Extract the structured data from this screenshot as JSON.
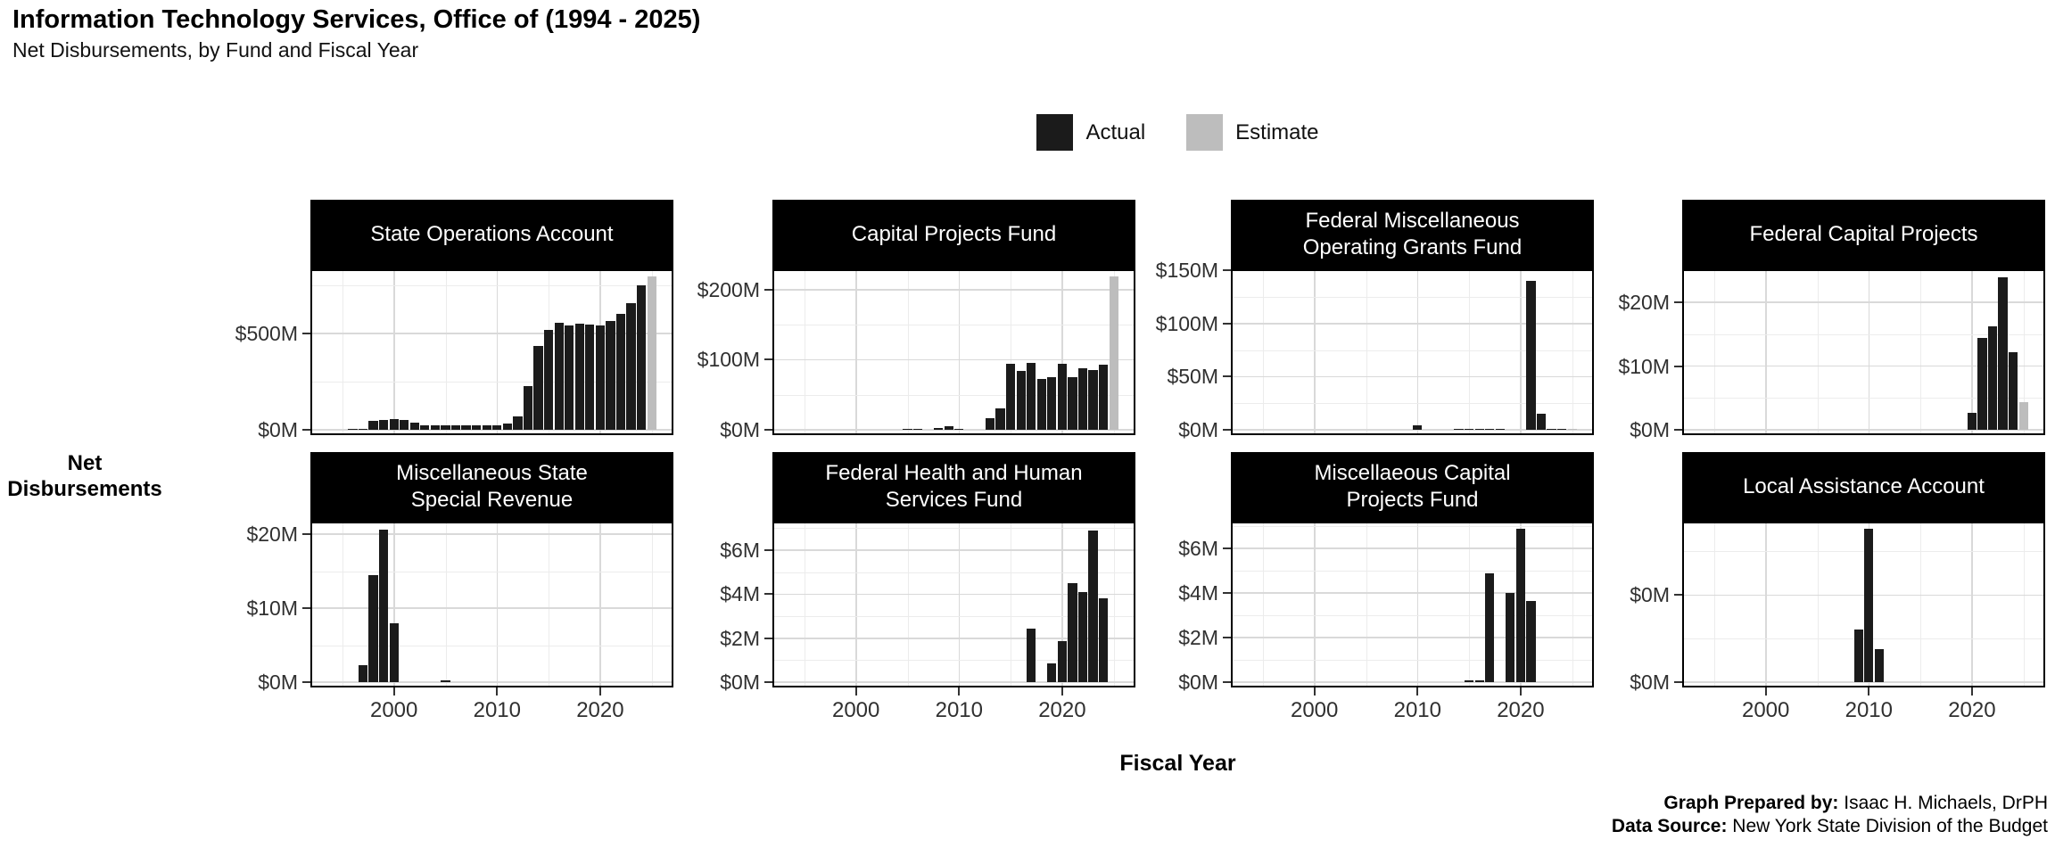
{
  "header": {
    "title": "Information Technology Services, Office of (1994 - 2025)",
    "subtitle": "Net Disbursements, by Fund and Fiscal Year"
  },
  "legend": {
    "items": [
      {
        "label": "Actual",
        "color": "#1b1b1b"
      },
      {
        "label": "Estimate",
        "color": "#bdbdbd"
      }
    ]
  },
  "footer": {
    "lines": [
      {
        "label": "Graph Prepared by:",
        "text": " Isaac H. Michaels, DrPH"
      },
      {
        "label": "Data Source:",
        "text": " New York State Division of the Budget"
      }
    ]
  },
  "chart_data": {
    "type": "bar",
    "title": "Information Technology Services, Office of (1994 - 2025)",
    "subtitle": "Net Disbursements, by Fund and Fiscal Year",
    "xlabel": "Fiscal Year",
    "ylabel": "Net Disbursements",
    "unit": "$M",
    "legend_position": "top-center",
    "grid": true,
    "x_domain": [
      1991.9,
      2027.1
    ],
    "bar_width_years": 0.9,
    "x_ticks": [
      2000,
      2010,
      2020
    ],
    "x_major": [
      2000,
      2010,
      2020
    ],
    "x_minor": [
      1995,
      2005,
      2015,
      2025
    ],
    "series_colors": {
      "actual": "#1b1b1b",
      "estimate": "#bdbdbd"
    },
    "facets": [
      {
        "title": "State Operations Account",
        "ymax": 833,
        "major_ticks": [
          {
            "value": 0,
            "label": "$0M"
          },
          {
            "value": 500,
            "label": "$500M"
          }
        ],
        "minor_ticks": [
          250,
          750
        ],
        "bars": [
          {
            "year": 1996,
            "value": 2,
            "kind": "actual"
          },
          {
            "year": 1997,
            "value": 6,
            "kind": "actual"
          },
          {
            "year": 1998,
            "value": 48,
            "kind": "actual"
          },
          {
            "year": 1999,
            "value": 50,
            "kind": "actual"
          },
          {
            "year": 2000,
            "value": 58,
            "kind": "actual"
          },
          {
            "year": 2001,
            "value": 52,
            "kind": "actual"
          },
          {
            "year": 2002,
            "value": 38,
            "kind": "actual"
          },
          {
            "year": 2003,
            "value": 24,
            "kind": "actual"
          },
          {
            "year": 2004,
            "value": 22,
            "kind": "actual"
          },
          {
            "year": 2005,
            "value": 23,
            "kind": "actual"
          },
          {
            "year": 2006,
            "value": 24,
            "kind": "actual"
          },
          {
            "year": 2007,
            "value": 24,
            "kind": "actual"
          },
          {
            "year": 2008,
            "value": 24,
            "kind": "actual"
          },
          {
            "year": 2009,
            "value": 24,
            "kind": "actual"
          },
          {
            "year": 2010,
            "value": 22,
            "kind": "actual"
          },
          {
            "year": 2011,
            "value": 33,
            "kind": "actual"
          },
          {
            "year": 2012,
            "value": 70,
            "kind": "actual"
          },
          {
            "year": 2013,
            "value": 227,
            "kind": "actual"
          },
          {
            "year": 2014,
            "value": 435,
            "kind": "actual"
          },
          {
            "year": 2015,
            "value": 519,
            "kind": "actual"
          },
          {
            "year": 2016,
            "value": 556,
            "kind": "actual"
          },
          {
            "year": 2017,
            "value": 542,
            "kind": "actual"
          },
          {
            "year": 2018,
            "value": 551,
            "kind": "actual"
          },
          {
            "year": 2019,
            "value": 546,
            "kind": "actual"
          },
          {
            "year": 2020,
            "value": 542,
            "kind": "actual"
          },
          {
            "year": 2021,
            "value": 565,
            "kind": "actual"
          },
          {
            "year": 2022,
            "value": 602,
            "kind": "actual"
          },
          {
            "year": 2023,
            "value": 657,
            "kind": "actual"
          },
          {
            "year": 2024,
            "value": 750,
            "kind": "actual"
          },
          {
            "year": 2025,
            "value": 795,
            "kind": "estimate"
          }
        ]
      },
      {
        "title": "Capital Projects Fund",
        "ymax": 229,
        "major_ticks": [
          {
            "value": 0,
            "label": "$0M"
          },
          {
            "value": 100,
            "label": "$100M"
          },
          {
            "value": 200,
            "label": "$200M"
          }
        ],
        "minor_ticks": [
          50,
          150
        ],
        "bars": [
          {
            "year": 2005,
            "value": 0.8,
            "kind": "actual"
          },
          {
            "year": 2006,
            "value": 0.8,
            "kind": "actual"
          },
          {
            "year": 2008,
            "value": 3,
            "kind": "actual"
          },
          {
            "year": 2009,
            "value": 5.5,
            "kind": "actual"
          },
          {
            "year": 2010,
            "value": 1.2,
            "kind": "actual"
          },
          {
            "year": 2013,
            "value": 17,
            "kind": "actual"
          },
          {
            "year": 2014,
            "value": 30,
            "kind": "actual"
          },
          {
            "year": 2015,
            "value": 94,
            "kind": "actual"
          },
          {
            "year": 2016,
            "value": 84,
            "kind": "actual"
          },
          {
            "year": 2017,
            "value": 96,
            "kind": "actual"
          },
          {
            "year": 2018,
            "value": 72,
            "kind": "actual"
          },
          {
            "year": 2019,
            "value": 75,
            "kind": "actual"
          },
          {
            "year": 2020,
            "value": 94,
            "kind": "actual"
          },
          {
            "year": 2021,
            "value": 75,
            "kind": "actual"
          },
          {
            "year": 2022,
            "value": 88,
            "kind": "actual"
          },
          {
            "year": 2023,
            "value": 85,
            "kind": "actual"
          },
          {
            "year": 2024,
            "value": 93,
            "kind": "actual"
          },
          {
            "year": 2025,
            "value": 219,
            "kind": "estimate"
          }
        ]
      },
      {
        "title": "Federal Miscellaneous\nOperating Grants Fund",
        "ymax": 151,
        "major_ticks": [
          {
            "value": 0,
            "label": "$0M"
          },
          {
            "value": 50,
            "label": "$50M"
          },
          {
            "value": 100,
            "label": "$100M"
          },
          {
            "value": 150,
            "label": "$150M"
          }
        ],
        "minor_ticks": [
          25,
          75,
          125
        ],
        "bars": [
          {
            "year": 2010,
            "value": 4,
            "kind": "actual"
          },
          {
            "year": 2014,
            "value": 1,
            "kind": "actual"
          },
          {
            "year": 2015,
            "value": 1,
            "kind": "actual"
          },
          {
            "year": 2016,
            "value": 1,
            "kind": "actual"
          },
          {
            "year": 2017,
            "value": 0.8,
            "kind": "actual"
          },
          {
            "year": 2018,
            "value": 0.8,
            "kind": "actual"
          },
          {
            "year": 2021,
            "value": 140,
            "kind": "actual"
          },
          {
            "year": 2022,
            "value": 15,
            "kind": "actual"
          },
          {
            "year": 2023,
            "value": 0.5,
            "kind": "actual"
          },
          {
            "year": 2024,
            "value": 0.5,
            "kind": "actual"
          },
          {
            "year": 2025,
            "value": 0.6,
            "kind": "estimate"
          }
        ]
      },
      {
        "title": "Federal Capital Projects",
        "ymax": 25.2,
        "major_ticks": [
          {
            "value": 0,
            "label": "$0M"
          },
          {
            "value": 10,
            "label": "$10M"
          },
          {
            "value": 20,
            "label": "$20M"
          }
        ],
        "minor_ticks": [
          5,
          15,
          25
        ],
        "bars": [
          {
            "year": 2020,
            "value": 2.6,
            "kind": "actual"
          },
          {
            "year": 2021,
            "value": 14.4,
            "kind": "actual"
          },
          {
            "year": 2022,
            "value": 16.2,
            "kind": "actual"
          },
          {
            "year": 2023,
            "value": 23.9,
            "kind": "actual"
          },
          {
            "year": 2024,
            "value": 12.2,
            "kind": "actual"
          },
          {
            "year": 2025,
            "value": 4.4,
            "kind": "estimate"
          }
        ]
      },
      {
        "title": "Miscellaneous State\nSpecial Revenue",
        "ymax": 21.7,
        "major_ticks": [
          {
            "value": 0,
            "label": "$0M"
          },
          {
            "value": 10,
            "label": "$10M"
          },
          {
            "value": 20,
            "label": "$20M"
          }
        ],
        "minor_ticks": [
          5,
          15
        ],
        "bars": [
          {
            "year": 1997,
            "value": 2.3,
            "kind": "actual"
          },
          {
            "year": 1998,
            "value": 14.5,
            "kind": "actual"
          },
          {
            "year": 1999,
            "value": 20.6,
            "kind": "actual"
          },
          {
            "year": 2000,
            "value": 8,
            "kind": "actual"
          },
          {
            "year": 2005,
            "value": 0.3,
            "kind": "actual"
          }
        ]
      },
      {
        "title": "Federal Health and Human\nServices Fund",
        "ymax": 7.3,
        "major_ticks": [
          {
            "value": 0,
            "label": "$0M"
          },
          {
            "value": 2,
            "label": "$2M"
          },
          {
            "value": 4,
            "label": "$4M"
          },
          {
            "value": 6,
            "label": "$6M"
          }
        ],
        "minor_ticks": [
          1,
          3,
          5,
          7
        ],
        "bars": [
          {
            "year": 2017,
            "value": 2.45,
            "kind": "actual"
          },
          {
            "year": 2019,
            "value": 0.85,
            "kind": "actual"
          },
          {
            "year": 2020,
            "value": 1.85,
            "kind": "actual"
          },
          {
            "year": 2021,
            "value": 4.5,
            "kind": "actual"
          },
          {
            "year": 2022,
            "value": 4.1,
            "kind": "actual"
          },
          {
            "year": 2023,
            "value": 6.9,
            "kind": "actual"
          },
          {
            "year": 2024,
            "value": 3.8,
            "kind": "actual"
          }
        ]
      },
      {
        "title": "Miscellaeous Capital\nProjects Fund",
        "ymax": 7.2,
        "major_ticks": [
          {
            "value": 0,
            "label": "$0M"
          },
          {
            "value": 2,
            "label": "$2M"
          },
          {
            "value": 4,
            "label": "$4M"
          },
          {
            "value": 6,
            "label": "$6M"
          }
        ],
        "minor_ticks": [
          1,
          3,
          5,
          7
        ],
        "bars": [
          {
            "year": 2015,
            "value": 0.08,
            "kind": "actual"
          },
          {
            "year": 2016,
            "value": 0.08,
            "kind": "actual"
          },
          {
            "year": 2017,
            "value": 4.9,
            "kind": "actual"
          },
          {
            "year": 2019,
            "value": 4.0,
            "kind": "actual"
          },
          {
            "year": 2020,
            "value": 6.9,
            "kind": "actual"
          },
          {
            "year": 2021,
            "value": 3.65,
            "kind": "actual"
          }
        ]
      },
      {
        "title": "Local Assistance Account",
        "ymax": 0.92,
        "major_ticks": [
          {
            "value": 0,
            "label": "$0M"
          },
          {
            "value": 0.5,
            "label": "$0M"
          }
        ],
        "minor_ticks": [
          0.25,
          0.75
        ],
        "bars": [
          {
            "year": 2009,
            "value": 0.3,
            "kind": "actual"
          },
          {
            "year": 2010,
            "value": 0.88,
            "kind": "actual"
          },
          {
            "year": 2011,
            "value": 0.19,
            "kind": "actual"
          }
        ]
      }
    ]
  }
}
